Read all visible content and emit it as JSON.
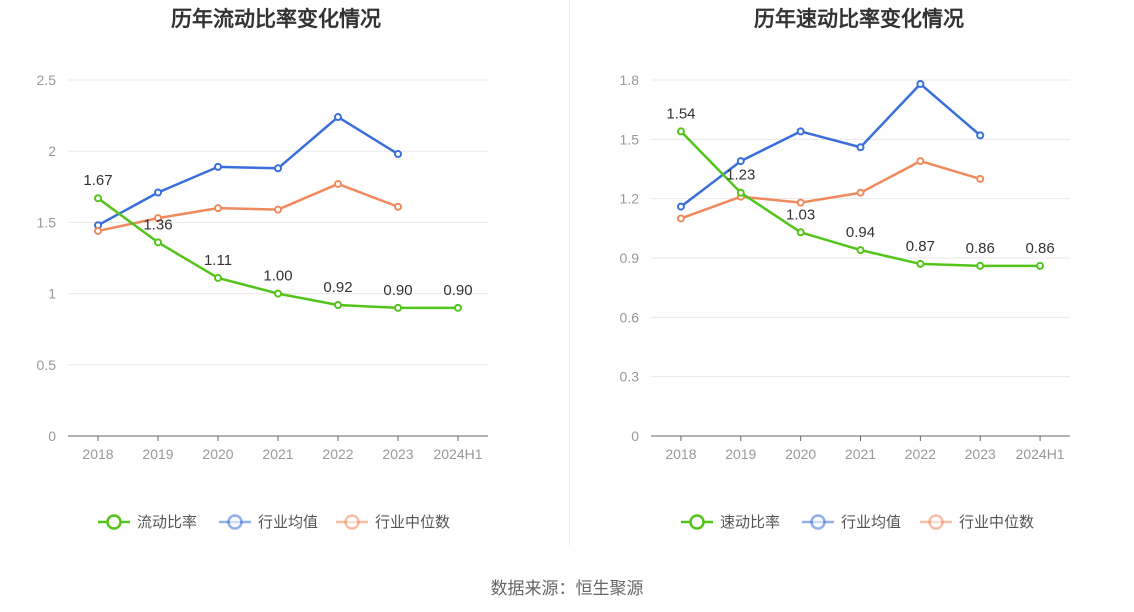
{
  "source_label": "数据来源：恒生聚源",
  "colors": {
    "main": "#52c41a",
    "avg": "#3a6fdb",
    "median": "#f08a5d",
    "axis": "#999999",
    "grid": "#e8e8e8",
    "label": "#333333",
    "legend_text": "#555555"
  },
  "chart_data": [
    {
      "type": "line",
      "title": "历年流动比率变化情况",
      "categories": [
        "2018",
        "2019",
        "2020",
        "2021",
        "2022",
        "2023",
        "2024H1"
      ],
      "ylim": [
        0,
        2.5
      ],
      "yticks": [
        "0",
        "0.5",
        "1",
        "1.5",
        "2",
        "2.5"
      ],
      "grid": true,
      "legend_position": "bottom",
      "series": [
        {
          "name": "流动比率",
          "key": "main",
          "values": [
            1.67,
            1.36,
            1.11,
            1.0,
            0.92,
            0.9,
            0.9
          ],
          "labels": [
            "1.67",
            "1.36",
            "1.11",
            "1.00",
            "0.92",
            "0.90",
            "0.90"
          ]
        },
        {
          "name": "行业均值",
          "key": "avg",
          "values": [
            1.48,
            1.71,
            1.89,
            1.88,
            2.24,
            1.98,
            null
          ]
        },
        {
          "name": "行业中位数",
          "key": "median",
          "values": [
            1.44,
            1.53,
            1.6,
            1.59,
            1.77,
            1.61,
            null
          ]
        }
      ]
    },
    {
      "type": "line",
      "title": "历年速动比率变化情况",
      "categories": [
        "2018",
        "2019",
        "2020",
        "2021",
        "2022",
        "2023",
        "2024H1"
      ],
      "ylim": [
        0,
        1.8
      ],
      "yticks": [
        "0",
        "0.3",
        "0.6",
        "0.9",
        "1.2",
        "1.5",
        "1.8"
      ],
      "grid": true,
      "legend_position": "bottom",
      "series": [
        {
          "name": "速动比率",
          "key": "main",
          "values": [
            1.54,
            1.23,
            1.03,
            0.94,
            0.87,
            0.86,
            0.86
          ],
          "labels": [
            "1.54",
            "1.23",
            "1.03",
            "0.94",
            "0.87",
            "0.86",
            "0.86"
          ]
        },
        {
          "name": "行业均值",
          "key": "avg",
          "values": [
            1.16,
            1.39,
            1.54,
            1.46,
            1.78,
            1.52,
            null
          ]
        },
        {
          "name": "行业中位数",
          "key": "median",
          "values": [
            1.1,
            1.21,
            1.18,
            1.23,
            1.39,
            1.3,
            null
          ]
        }
      ]
    }
  ]
}
